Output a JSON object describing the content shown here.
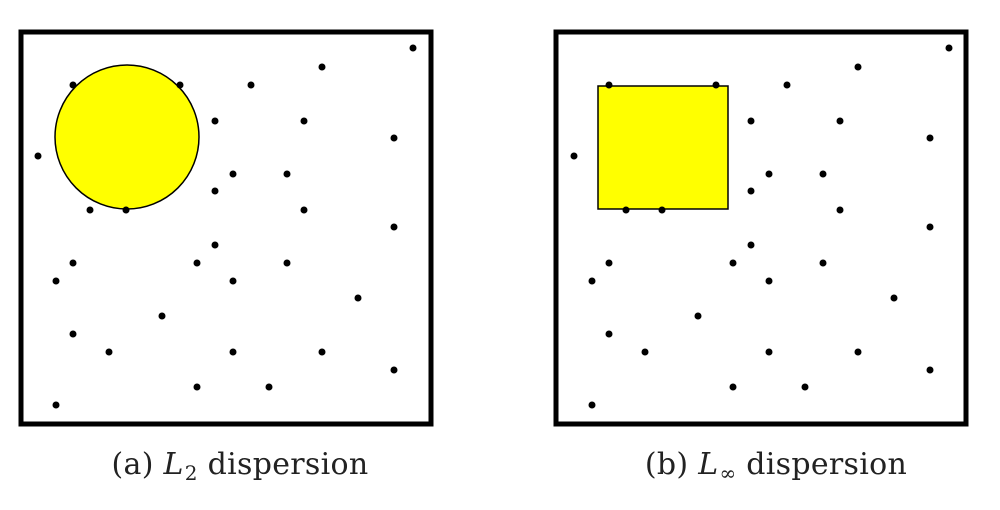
{
  "colors": {
    "frame": "#000000",
    "point": "#000000",
    "highlight": "#ffff00",
    "background": "#ffffff"
  },
  "panels": [
    {
      "id": "a",
      "caption": {
        "prefix": "(a) ",
        "symbol": "L",
        "subscript": "2",
        "suffix": " dispersion"
      },
      "shape": "circle"
    },
    {
      "id": "b",
      "caption": {
        "prefix": "(b) ",
        "symbol": "L",
        "subscript": "∞",
        "suffix": " dispersion"
      },
      "shape": "square"
    }
  ]
}
